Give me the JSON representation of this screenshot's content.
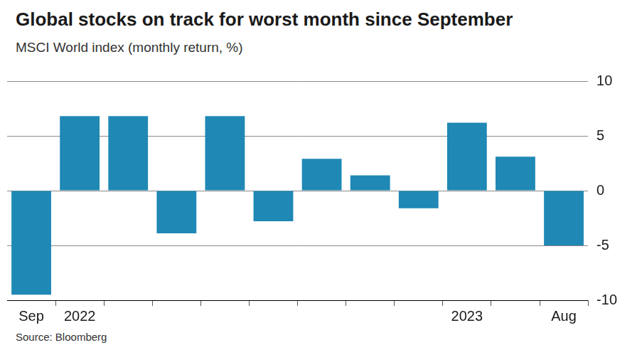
{
  "chart_data": {
    "type": "bar",
    "title": "Global stocks on track for worst month since September",
    "subtitle": "MSCI World index (monthly return, %)",
    "source": "Source: Bloomberg",
    "categories": [
      "Sep",
      "2022",
      null,
      null,
      null,
      null,
      null,
      null,
      null,
      "2023",
      null,
      "Aug"
    ],
    "values": [
      -9.5,
      6.8,
      6.8,
      -3.9,
      6.8,
      -2.8,
      2.9,
      1.4,
      -1.6,
      6.2,
      3.1,
      -5.0
    ],
    "color": "#1f88b5",
    "ylim": [
      -10,
      10
    ],
    "yticks": [
      -10,
      -5,
      0,
      5,
      10
    ],
    "grid": true
  }
}
